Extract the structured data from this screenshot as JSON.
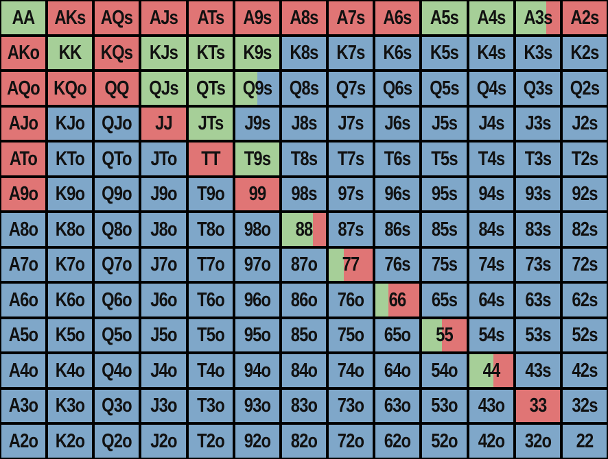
{
  "colors": {
    "raise": "#e07575",
    "call": "#a6cf98",
    "fold": "#7fa7c9",
    "gridline": "#000000",
    "text": "#111111"
  },
  "chart_data": {
    "type": "heatmap",
    "ranks": [
      "A",
      "K",
      "Q",
      "J",
      "T",
      "9",
      "8",
      "7",
      "6",
      "5",
      "4",
      "3",
      "2"
    ],
    "legend_note": "cell fill fractions: green = call, red = raise, blue = fold",
    "rows": [
      [
        "AA",
        "AKs",
        "AQs",
        "AJs",
        "ATs",
        "A9s",
        "A8s",
        "A7s",
        "A6s",
        "A5s",
        "A4s",
        "A3s",
        "A2s"
      ],
      [
        "AKo",
        "KK",
        "KQs",
        "KJs",
        "KTs",
        "K9s",
        "K8s",
        "K7s",
        "K6s",
        "K5s",
        "K4s",
        "K3s",
        "K2s"
      ],
      [
        "AQo",
        "KQo",
        "QQ",
        "QJs",
        "QTs",
        "Q9s",
        "Q8s",
        "Q7s",
        "Q6s",
        "Q5s",
        "Q4s",
        "Q3s",
        "Q2s"
      ],
      [
        "AJo",
        "KJo",
        "QJo",
        "JJ",
        "JTs",
        "J9s",
        "J8s",
        "J7s",
        "J6s",
        "J5s",
        "J4s",
        "J3s",
        "J2s"
      ],
      [
        "ATo",
        "KTo",
        "QTo",
        "JTo",
        "TT",
        "T9s",
        "T8s",
        "T7s",
        "T6s",
        "T5s",
        "T4s",
        "T3s",
        "T2s"
      ],
      [
        "A9o",
        "K9o",
        "Q9o",
        "J9o",
        "T9o",
        "99",
        "98s",
        "97s",
        "96s",
        "95s",
        "94s",
        "93s",
        "92s"
      ],
      [
        "A8o",
        "K8o",
        "Q8o",
        "J8o",
        "T8o",
        "98o",
        "88",
        "87s",
        "86s",
        "85s",
        "84s",
        "83s",
        "82s"
      ],
      [
        "A7o",
        "K7o",
        "Q7o",
        "J7o",
        "T7o",
        "97o",
        "87o",
        "77",
        "76s",
        "75s",
        "74s",
        "73s",
        "72s"
      ],
      [
        "A6o",
        "K6o",
        "Q6o",
        "J6o",
        "T6o",
        "96o",
        "86o",
        "76o",
        "66",
        "65s",
        "64s",
        "63s",
        "62s"
      ],
      [
        "A5o",
        "K5o",
        "Q5o",
        "J5o",
        "T5o",
        "95o",
        "85o",
        "75o",
        "65o",
        "55",
        "54s",
        "53s",
        "52s"
      ],
      [
        "A4o",
        "K4o",
        "Q4o",
        "J4o",
        "T4o",
        "94o",
        "84o",
        "74o",
        "64o",
        "54o",
        "44",
        "43s",
        "42s"
      ],
      [
        "A3o",
        "K3o",
        "Q3o",
        "J3o",
        "T3o",
        "93o",
        "83o",
        "73o",
        "63o",
        "53o",
        "43o",
        "33",
        "32s"
      ],
      [
        "A2o",
        "K2o",
        "Q2o",
        "J2o",
        "T2o",
        "92o",
        "82o",
        "72o",
        "62o",
        "52o",
        "42o",
        "32o",
        "22"
      ]
    ],
    "actions": {
      "AA": {
        "call": 1.0
      },
      "AKs": {
        "raise": 1.0
      },
      "AQs": {
        "raise": 1.0
      },
      "AJs": {
        "raise": 1.0
      },
      "ATs": {
        "raise": 1.0
      },
      "A9s": {
        "raise": 1.0
      },
      "A8s": {
        "raise": 1.0
      },
      "A7s": {
        "raise": 1.0
      },
      "A6s": {
        "raise": 1.0
      },
      "A5s": {
        "call": 1.0
      },
      "A4s": {
        "call": 1.0
      },
      "A3s": {
        "call": 0.68,
        "raise": 0.32
      },
      "A2s": {
        "raise": 1.0
      },
      "AKo": {
        "raise": 1.0
      },
      "KK": {
        "call": 1.0
      },
      "KQs": {
        "raise": 1.0
      },
      "KJs": {
        "call": 1.0
      },
      "KTs": {
        "call": 1.0
      },
      "K9s": {
        "call": 1.0
      },
      "AQo": {
        "raise": 1.0
      },
      "KQo": {
        "raise": 1.0
      },
      "QQ": {
        "raise": 1.0
      },
      "QJs": {
        "call": 1.0
      },
      "QTs": {
        "call": 1.0
      },
      "Q9s": {
        "call": 0.5
      },
      "AJo": {
        "raise": 1.0
      },
      "JJ": {
        "raise": 1.0
      },
      "JTs": {
        "call": 1.0
      },
      "ATo": {
        "raise": 1.0
      },
      "TT": {
        "raise": 1.0
      },
      "T9s": {
        "call": 1.0
      },
      "A9o": {
        "raise": 1.0
      },
      "99": {
        "raise": 1.0
      },
      "88": {
        "call": 0.7,
        "raise": 0.3
      },
      "77": {
        "call": 0.35,
        "raise": 0.65
      },
      "66": {
        "call": 0.3,
        "raise": 0.7
      },
      "55": {
        "call": 0.45,
        "raise": 0.55
      },
      "44": {
        "call": 0.55,
        "raise": 0.45
      },
      "33": {
        "raise": 1.0
      }
    }
  }
}
